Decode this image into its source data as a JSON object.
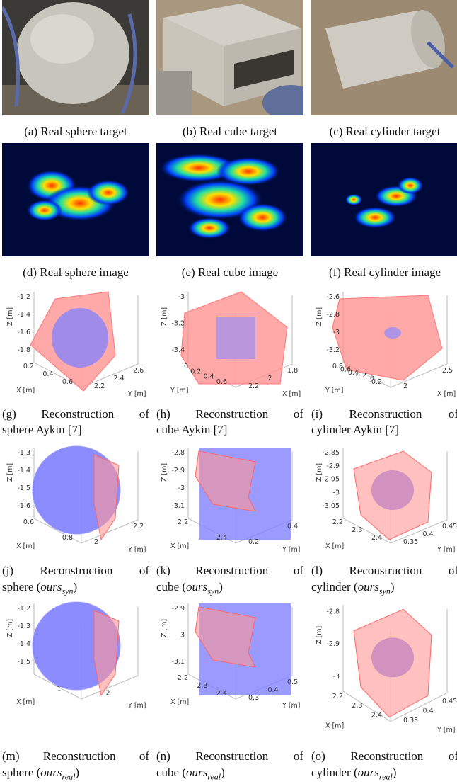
{
  "figure": {
    "rows": [
      {
        "panels": [
          {
            "caption": "(a) Real sphere target"
          },
          {
            "caption": "(b) Real cube target"
          },
          {
            "caption": "(c) Real cylinder target"
          }
        ]
      },
      {
        "panels": [
          {
            "caption": "(d) Real sphere image"
          },
          {
            "caption": "(e) Real cube image"
          },
          {
            "caption": "(f) Real cylinder image"
          }
        ]
      },
      {
        "panels": [
          {
            "caption_lines": [
              "(g) Reconstruction of",
              "sphere Aykin [7]"
            ],
            "zlabel": "Z [m]",
            "zticks": [
              "-1.2",
              "-1.4",
              "-1.6",
              "-1.8"
            ],
            "left_label": "X [m]",
            "left_ticks": [
              "0.2",
              "0.4",
              "0.6"
            ],
            "right_label": "Y [m]",
            "right_ticks": [
              "2.2",
              "2.4",
              "2.6"
            ]
          },
          {
            "caption_lines": [
              "(h) Reconstruction of",
              "cube Aykin [7]"
            ],
            "zlabel": "Z [m]",
            "zticks": [
              "-3",
              "-3.2",
              "-3.4"
            ],
            "left_label": "Y [m]",
            "left_ticks": [
              "0",
              "0.2",
              "0.4",
              "0.6"
            ],
            "right_label": "X [m]",
            "right_ticks": [
              "2.2",
              "2",
              "1.8"
            ]
          },
          {
            "caption_lines": [
              "(i) Reconstruction of",
              "cylinder Aykin [7]"
            ],
            "zlabel": "Z [m]",
            "zticks": [
              "-2.6",
              "-2.8",
              "-3",
              "-3.2"
            ],
            "left_label": "Y [m]",
            "left_ticks": [
              "0.8",
              "0.6",
              "0.4",
              "0.2",
              "0",
              "-0.2"
            ],
            "right_label": "X [m]",
            "right_ticks": [
              "2",
              "2.5"
            ]
          }
        ]
      },
      {
        "panels": [
          {
            "caption_lines": [
              "(j) Reconstruction of",
              "sphere ("
            ],
            "method": "ours",
            "method_sub": "syn",
            "close": ")",
            "zlabel": "Z [m]",
            "zticks": [
              "-1.3",
              "-1.4",
              "-1.5",
              "-1.6"
            ],
            "left_label": "X [m]",
            "left_ticks": [
              "0.6",
              "0.8"
            ],
            "right_label": "Y [m]",
            "right_ticks": [
              "2",
              "2.2"
            ]
          },
          {
            "caption_lines": [
              "(k) Reconstruction of",
              "cube ("
            ],
            "method": "ours",
            "method_sub": "syn",
            "close": ")",
            "zlabel": "Z [m]",
            "zticks": [
              "-2.8",
              "-2.9",
              "-3",
              "-3.1"
            ],
            "left_label": "X [m]",
            "left_ticks": [
              "2.2",
              "2.4"
            ],
            "right_label": "Y [m]",
            "right_ticks": [
              "0.2",
              "0.4"
            ]
          },
          {
            "caption_lines": [
              "(l) Reconstruction of",
              "cylinder ("
            ],
            "method": "ours",
            "method_sub": "syn",
            "close": ")",
            "zlabel": "Z [m]",
            "zticks": [
              "-2.85",
              "-2.9",
              "-2.95",
              "-3",
              "-3.05"
            ],
            "left_label": "X [m]",
            "left_ticks": [
              "2.2",
              "2.3",
              "2.4"
            ],
            "right_label": "Y [m]",
            "right_ticks": [
              "0.35",
              "0.4",
              "0.45"
            ]
          }
        ]
      },
      {
        "panels": [
          {
            "caption_lines": [
              "(m) Reconstruction of",
              "sphere ("
            ],
            "method": "ours",
            "method_sub": "real",
            "close": ")",
            "zlabel": "Z [m]",
            "zticks": [
              "-1.2",
              "-1.3",
              "-1.4",
              "-1.5"
            ],
            "left_label": "X [m]",
            "left_ticks": [
              "1"
            ],
            "right_label": "Y [m]",
            "right_ticks": [
              "2"
            ]
          },
          {
            "caption_lines": [
              "(n) Reconstruction of",
              "cube ("
            ],
            "method": "ours",
            "method_sub": "real",
            "close": ")",
            "zlabel": "Z [m]",
            "zticks": [
              "-2.9",
              "-3",
              "-3.1"
            ],
            "left_label": "X [m]",
            "left_ticks": [
              "2.2",
              "2.3",
              "2.4"
            ],
            "right_label": "Y [m]",
            "right_ticks": [
              "0.3",
              "0.4",
              "0.5"
            ]
          },
          {
            "caption_lines": [
              "(o) Reconstruction of",
              "cylinder ("
            ],
            "method": "ours",
            "method_sub": "real",
            "close": ")",
            "zlabel": "Z [m]",
            "zticks": [
              "-2.8",
              "-2.9",
              "-3"
            ],
            "left_label": "X [m]",
            "left_ticks": [
              "2.2",
              "2.3",
              "2.4"
            ],
            "right_label": "Y [m]",
            "right_ticks": [
              "0.35",
              "0.4",
              "0.45"
            ]
          }
        ]
      }
    ]
  }
}
